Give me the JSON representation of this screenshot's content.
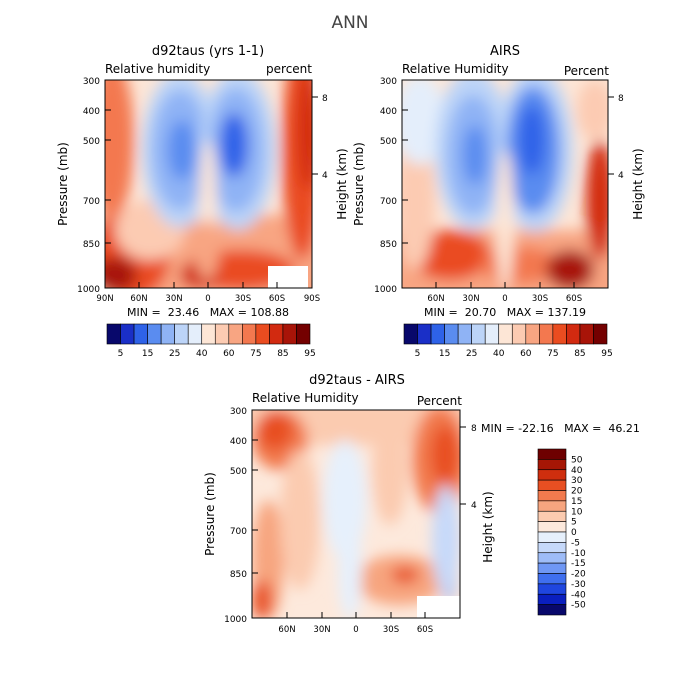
{
  "figure_title": "ANN",
  "colors": {
    "rh_scale": [
      "#08086b",
      "#1a2fc7",
      "#2e62e8",
      "#5a8cf0",
      "#8fb3f5",
      "#bcd4f8",
      "#e4eefb",
      "#fde6d6",
      "#fccbb2",
      "#f8a582",
      "#f3784f",
      "#ea4c20",
      "#d22a10",
      "#a81408",
      "#740000"
    ],
    "diff_scale": [
      "#08086b",
      "#0a1fbf",
      "#1f46df",
      "#3f6fef",
      "#6f97f4",
      "#9ebcf7",
      "#c6d9fa",
      "#e6f0fc",
      "#fde9dc",
      "#fbcbb0",
      "#f7a57f",
      "#f27a4e",
      "#e84f22",
      "#cf2e0e",
      "#a61605",
      "#6e0000"
    ]
  },
  "chart_data": [
    {
      "type": "heatmap",
      "title": "d92taus (yrs 1-1)",
      "subtitle_left": "Relative humidity",
      "subtitle_right": "percent",
      "ylabel": "Pressure (mb)",
      "ylabel_right": "Height (km)",
      "yticks": [
        "300",
        "400",
        "500",
        "700",
        "850",
        "1000"
      ],
      "yticks_right": [
        "8",
        "4"
      ],
      "xticks": [
        "90N",
        "60N",
        "30N",
        "0",
        "30S",
        "60S",
        "90S"
      ],
      "stats": "MIN =  23.46   MAX = 108.88",
      "colorbar_labels": [
        "5",
        "15",
        "25",
        "40",
        "60",
        "75",
        "85",
        "95"
      ]
    },
    {
      "type": "heatmap",
      "title": "AIRS",
      "subtitle_left": "Relative Humidity",
      "subtitle_right": "Percent",
      "ylabel": "Pressure (mb)",
      "ylabel_right": "Height (km)",
      "yticks": [
        "300",
        "400",
        "500",
        "700",
        "850",
        "1000"
      ],
      "yticks_right": [
        "8",
        "4"
      ],
      "xticks": [
        "60N",
        "30N",
        "0",
        "30S",
        "60S"
      ],
      "stats": "MIN =  20.70   MAX = 137.19",
      "colorbar_labels": [
        "5",
        "15",
        "25",
        "40",
        "60",
        "75",
        "85",
        "95"
      ]
    },
    {
      "type": "heatmap",
      "title": "d92taus - AIRS",
      "subtitle_left": "Relative Humidity",
      "subtitle_right": "Percent",
      "ylabel": "Pressure (mb)",
      "ylabel_right": "Height (km)",
      "yticks": [
        "300",
        "400",
        "500",
        "700",
        "850",
        "1000"
      ],
      "yticks_right": [
        "8",
        "4"
      ],
      "xticks": [
        "60N",
        "30N",
        "0",
        "30S",
        "60S"
      ],
      "stats": "MIN = -22.16   MAX =  46.21",
      "colorbar_labels": [
        "50",
        "40",
        "30",
        "20",
        "15",
        "10",
        "5",
        "0",
        "-5",
        "-10",
        "-15",
        "-20",
        "-30",
        "-40",
        "-50"
      ]
    }
  ]
}
